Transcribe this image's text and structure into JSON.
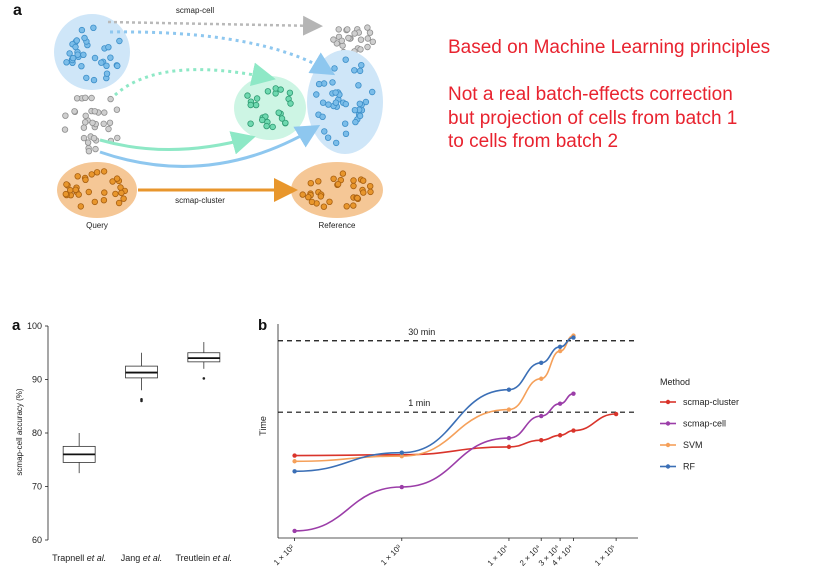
{
  "panel_a": {
    "letter": "a",
    "label_scmap_cell": "scmap-cell",
    "label_scmap_cluster": "scmap-cluster",
    "label_query": "Query",
    "label_reference": "Reference"
  },
  "notes": {
    "line1": "Based on Machine Learning principles",
    "line2": "Not a real batch-effects correction",
    "line3": "but projection of cells from batch 1",
    "line4": "to cells from batch 2"
  },
  "colors": {
    "note_red": "#e8232f",
    "scmap_cluster": "#d9342b",
    "scmap_cell": "#9b3da8",
    "svm": "#f5a05a",
    "rf": "#3b6fb6",
    "blue_cells": "#9fd0f0",
    "green_cells": "#a8ecd0",
    "orange_cells": "#f2b27a"
  },
  "chart_data": [
    {
      "type": "box",
      "panel": "a",
      "ylabel": "scmap-cell accuracy (%)",
      "ylim": [
        60,
        100
      ],
      "yticks": [
        "60",
        "70",
        "80",
        "90",
        "100"
      ],
      "categories": [
        {
          "name": "Trapnell",
          "suffix": "et al."
        },
        {
          "name": "Jang",
          "suffix": "et al."
        },
        {
          "name": "Treutlein",
          "suffix": "et al."
        }
      ],
      "boxes": [
        {
          "whisker_low": 72.5,
          "q1": 74.5,
          "median": 76,
          "q3": 77.5,
          "whisker_high": 80,
          "outliers": []
        },
        {
          "whisker_low": 88,
          "q1": 90.3,
          "median": 91.3,
          "q3": 92.5,
          "whisker_high": 95,
          "outliers": [
            86,
            86.3
          ]
        },
        {
          "whisker_low": 92,
          "q1": 93.3,
          "median": 94,
          "q3": 95,
          "whisker_high": 97,
          "outliers": [
            90.2
          ]
        }
      ]
    },
    {
      "type": "line",
      "panel": "b",
      "ylabel": "Time",
      "xscale": "log",
      "xticks": [
        "1 × 10²",
        "1 × 10³",
        "1 × 10⁴",
        "2 × 10⁴",
        "3 × 10⁴",
        "4 × 10⁴",
        "1 × 10⁵"
      ],
      "xtick_values": [
        100,
        1000,
        10000,
        20000,
        30000,
        40000,
        100000
      ],
      "hlines": [
        {
          "label": "30 min",
          "value": 1800
        },
        {
          "label": "1 min",
          "value": 60
        }
      ],
      "legend_title": "Method",
      "legend_position": "right",
      "series": [
        {
          "name": "scmap-cluster",
          "x": [
            100,
            1000,
            10000,
            20000,
            30000,
            40000,
            100000
          ],
          "y": [
            7.6,
            7.9,
            11.5,
            15.8,
            20,
            25,
            55
          ]
        },
        {
          "name": "scmap-cell",
          "x": [
            100,
            1000,
            10000,
            20000,
            30000,
            40000
          ],
          "y": [
            0.21,
            1.7,
            17.5,
            50,
            90,
            145
          ]
        },
        {
          "name": "SVM",
          "x": [
            100,
            1000,
            10000,
            20000,
            30000,
            40000
          ],
          "y": [
            5.8,
            7.4,
            68,
            295,
            1100,
            2300
          ]
        },
        {
          "name": "RF",
          "x": [
            100,
            1000,
            10000,
            20000,
            30000,
            40000
          ],
          "y": [
            3.6,
            8.7,
            175,
            630,
            1350,
            2100
          ]
        }
      ]
    }
  ]
}
